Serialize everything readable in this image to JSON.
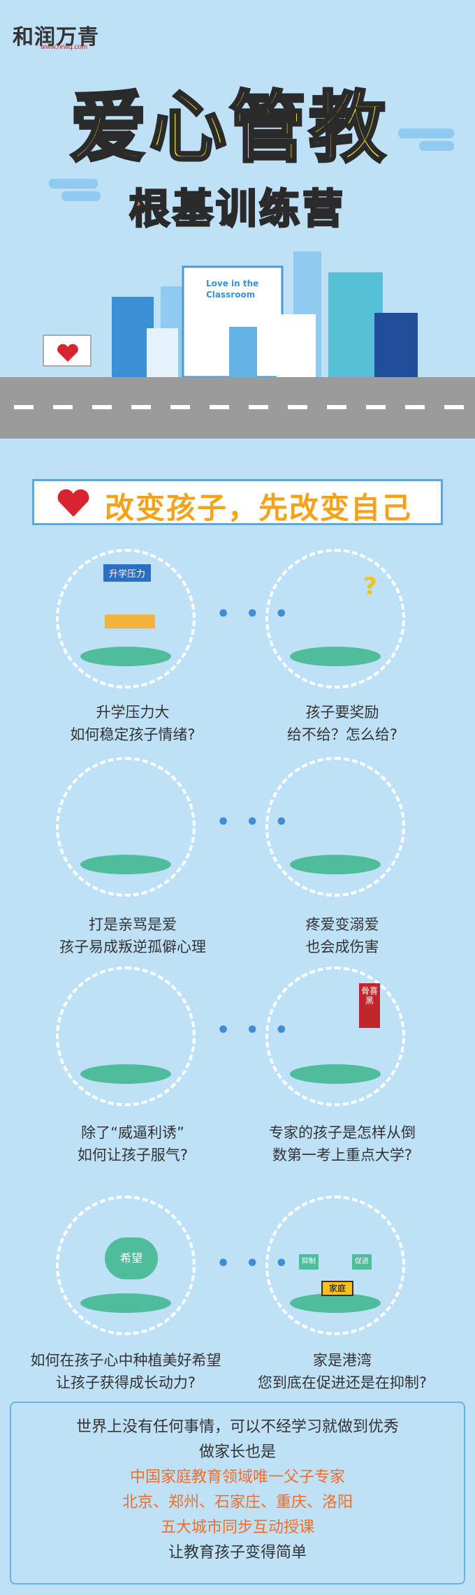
{
  "logo": {
    "name": "和润万青",
    "url": "www.hrwq.com"
  },
  "title": "爱心管教",
  "subtitle": "根基训练营",
  "billboard": {
    "line1": "Love in the",
    "line2": "Classroom"
  },
  "slogan": "改变孩子，先改变自己",
  "items": [
    {
      "tag": "升学压力",
      "line1": "升学压力大",
      "line2": "如何稳定孩子情绪?"
    },
    {
      "tag": "?",
      "line1": "孩子要奖励",
      "line2": "给不给？怎么给?"
    },
    {
      "line1": "打是亲骂是爱",
      "line2": "孩子易成叛逆孤僻心理"
    },
    {
      "line1": "疼爱变溺爱",
      "line2": "也会成伤害"
    },
    {
      "line1": "除了“威逼利诱”",
      "line2": "如何让孩子服气?"
    },
    {
      "tag": "骨喜黑",
      "line1": "专家的孩子是怎样从倒",
      "line2": "数第一考上重点大学?"
    },
    {
      "tag": "希望",
      "line1": "如何在孩子心中种植美好希望",
      "line2": "让孩子获得成长动力?"
    },
    {
      "tag": "家庭",
      "tag_left": "抑制",
      "tag_right": "促进",
      "line1": "家是港湾",
      "line2": "您到底在促进还是在抑制?"
    }
  ],
  "dots": "• • •",
  "bottom": {
    "line1": "世界上没有任何事情，可以不经学习就做到优秀",
    "line2": "做家长也是",
    "line3": "中国家庭教育领域唯一父子专家",
    "line4": "北京、郑州、石家庄、重庆、洛阳",
    "line5": "五大城市同步互动授课",
    "line6": "让教育孩子变得简单"
  },
  "colors": {
    "background": "#bfe1f7",
    "title": "#fdf11e",
    "subtitle": "#f07d2d",
    "slogan": "#f4a21b",
    "accent": "#f06d2c",
    "ground": "#4fbd9c"
  }
}
